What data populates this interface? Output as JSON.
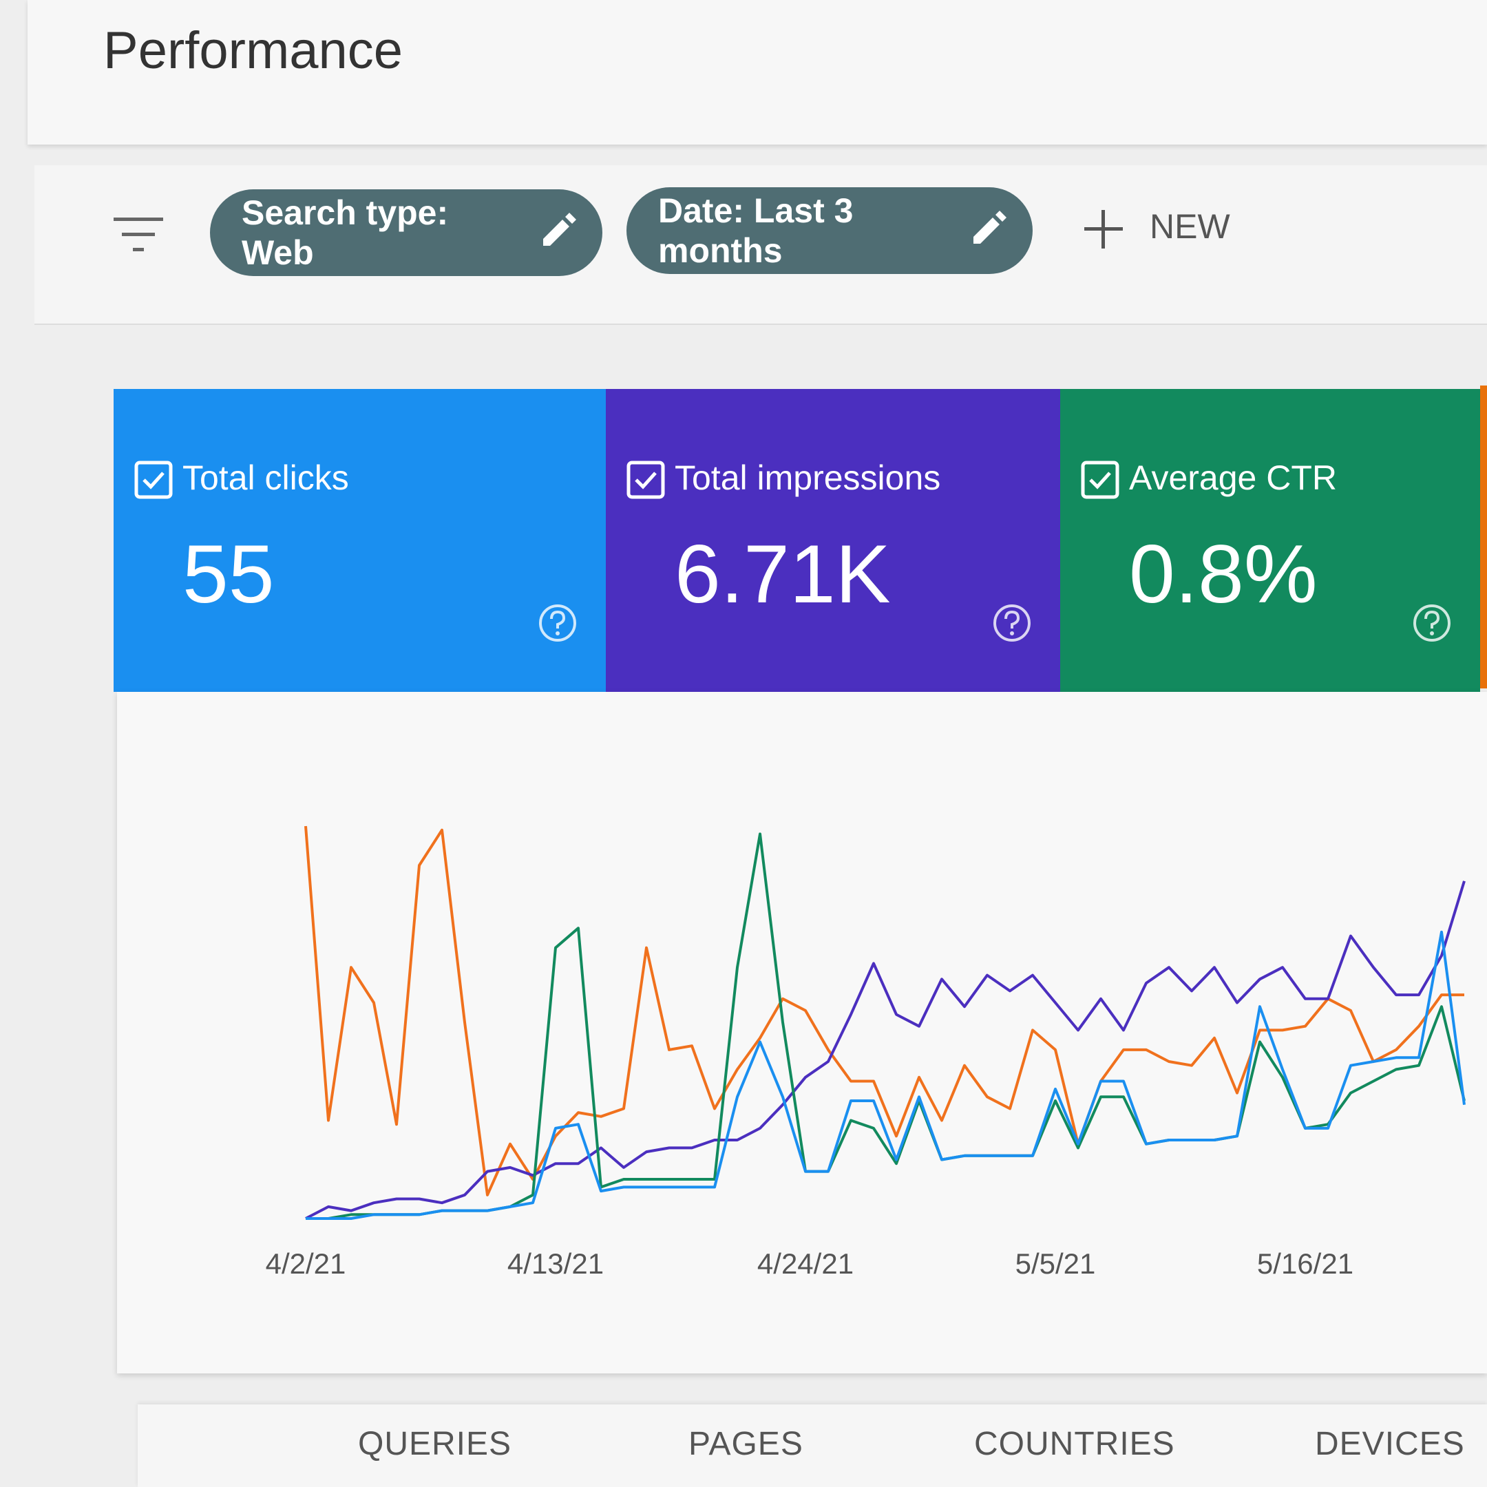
{
  "header": {
    "title": "Performance"
  },
  "filters": {
    "chips": [
      "Search type: Web",
      "Date: Last 3 months"
    ],
    "new_button": "NEW"
  },
  "metrics": [
    {
      "label": "Total clicks",
      "value": "55",
      "color": "#1a8ff0"
    },
    {
      "label": "Total impressions",
      "value": "6.71K",
      "color": "#4b2fbf"
    },
    {
      "label": "Average CTR",
      "value": "0.8%",
      "color": "#128a5e"
    }
  ],
  "chart_data": {
    "type": "line",
    "x": [
      "4/2/21",
      null,
      null,
      null,
      null,
      null,
      null,
      null,
      null,
      null,
      null,
      "4/13/21",
      null,
      null,
      null,
      null,
      null,
      null,
      null,
      null,
      null,
      null,
      "4/24/21",
      null,
      null,
      null,
      null,
      null,
      null,
      null,
      null,
      null,
      null,
      "5/5/21",
      null,
      null,
      null,
      null,
      null,
      null,
      null,
      null,
      null,
      null,
      "5/16/21",
      null,
      null,
      null,
      null,
      null,
      null,
      null
    ],
    "ylim": [
      0,
      100
    ],
    "series": [
      {
        "color": "#f0711d",
        "values": [
          100,
          25,
          64,
          55,
          24,
          90,
          99,
          50,
          6,
          19,
          10,
          21,
          27,
          26,
          28,
          69,
          43,
          44,
          28,
          38,
          46,
          56,
          53,
          43,
          35,
          35,
          21,
          36,
          25,
          39,
          31,
          28,
          48,
          43,
          19,
          35,
          43,
          43,
          40,
          39,
          46,
          32,
          48,
          48,
          49,
          56,
          53,
          40,
          43,
          49,
          57,
          57
        ]
      },
      {
        "color": "#4b2fbf",
        "values": [
          0,
          3,
          2,
          4,
          5,
          5,
          4,
          6,
          12,
          13,
          11,
          14,
          14,
          18,
          13,
          17,
          18,
          18,
          20,
          20,
          23,
          29,
          36,
          40,
          52,
          65,
          52,
          49,
          61,
          54,
          62,
          58,
          62,
          55,
          48,
          56,
          48,
          60,
          64,
          58,
          64,
          55,
          61,
          64,
          56,
          56,
          72,
          64,
          57,
          57,
          67,
          86
        ]
      },
      {
        "color": "#128a5e",
        "values": [
          0,
          0,
          1,
          1,
          1,
          1,
          2,
          2,
          2,
          3,
          6,
          69,
          74,
          8,
          10,
          10,
          10,
          10,
          10,
          64,
          98,
          50,
          12,
          12,
          25,
          23,
          14,
          30,
          15,
          16,
          16,
          16,
          16,
          30,
          18,
          31,
          31,
          19,
          20,
          20,
          20,
          21,
          45,
          36,
          23,
          24,
          32,
          35,
          38,
          39,
          54,
          30
        ]
      },
      {
        "color": "#1a8ff0",
        "values": [
          0,
          0,
          0,
          1,
          1,
          1,
          2,
          2,
          2,
          3,
          4,
          23,
          24,
          7,
          8,
          8,
          8,
          8,
          8,
          31,
          45,
          31,
          12,
          12,
          30,
          30,
          15,
          31,
          15,
          16,
          16,
          16,
          16,
          33,
          19,
          35,
          35,
          19,
          20,
          20,
          20,
          21,
          54,
          38,
          23,
          23,
          39,
          40,
          41,
          41,
          73,
          29
        ]
      }
    ]
  },
  "tabs": [
    "QUERIES",
    "PAGES",
    "COUNTRIES",
    "DEVICES"
  ]
}
